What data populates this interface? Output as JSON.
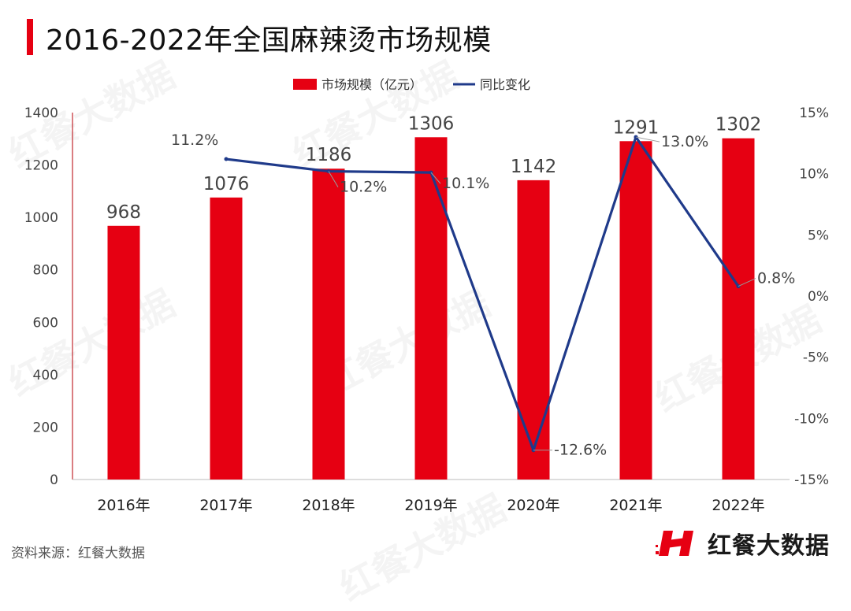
{
  "title": "2016-2022年全国麻辣烫市场规模",
  "source": "资料来源：红餐大数据",
  "brand": {
    "name": "红餐大数据",
    "logo_color": "#e60012",
    "logo_icon": "red-H-logo-icon"
  },
  "watermark": "红餐大数据",
  "chart_data": {
    "type": "bar",
    "categories": [
      "2016年",
      "2017年",
      "2018年",
      "2019年",
      "2020年",
      "2021年",
      "2022年"
    ],
    "series": [
      {
        "name": "市场规模（亿元）",
        "type": "bar",
        "axis": "left",
        "color": "#e60012",
        "values": [
          968,
          1076,
          1186,
          1306,
          1142,
          1291,
          1302
        ],
        "labels": [
          "968",
          "1076",
          "1186",
          "1306",
          "1142",
          "1291",
          "1302"
        ]
      },
      {
        "name": "同比变化",
        "type": "line",
        "axis": "right",
        "color": "#1f3a8a",
        "values": [
          null,
          11.2,
          10.2,
          10.1,
          -12.6,
          13.0,
          0.8
        ],
        "labels": [
          "",
          "11.2%",
          "10.2%",
          "10.1%",
          "-12.6%",
          "13.0%",
          "0.8%"
        ]
      }
    ],
    "y_left": {
      "min": 0,
      "max": 1400,
      "ticks": [
        "0",
        "200",
        "400",
        "600",
        "800",
        "1000",
        "1200",
        "1400"
      ],
      "tick_values": [
        0,
        200,
        400,
        600,
        800,
        1000,
        1200,
        1400
      ]
    },
    "y_right": {
      "min": -15,
      "max": 15,
      "ticks": [
        "-15%",
        "-10%",
        "-5%",
        "0%",
        "5%",
        "10%",
        "15%"
      ],
      "tick_values": [
        -15,
        -10,
        -5,
        0,
        5,
        10,
        15
      ]
    },
    "legend_position": "top",
    "grid": false
  }
}
